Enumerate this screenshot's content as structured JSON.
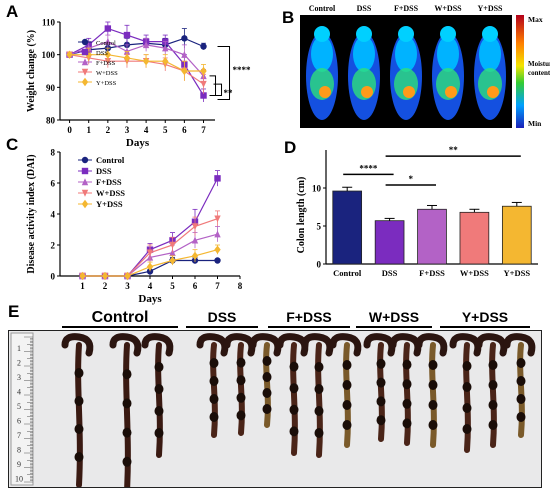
{
  "panels": {
    "a": "A",
    "b": "B",
    "c": "C",
    "d": "D",
    "e": "E"
  },
  "colors": {
    "control": "#1a237e",
    "dss": "#7b2cbf",
    "f_dss": "#b362c6",
    "w_dss": "#f07a7a",
    "y_dss": "#f4b731"
  },
  "chart_data": [
    {
      "id": "weight",
      "type": "line",
      "ylabel": "Weight change (%)",
      "xlabel": "Days",
      "x": [
        0,
        1,
        2,
        3,
        4,
        5,
        6,
        7
      ],
      "xlim": [
        -0.5,
        7.6
      ],
      "ylim": [
        80,
        110
      ],
      "yticks": [
        80,
        90,
        100,
        110
      ],
      "series": [
        {
          "name": "Control",
          "color": "#1a237e",
          "marker": "circle",
          "values": [
            100,
            101.5,
            102,
            103,
            103.5,
            103,
            105,
            102.5
          ],
          "err": [
            0,
            1.5,
            1.5,
            2,
            1.5,
            2,
            3,
            1
          ]
        },
        {
          "name": "DSS",
          "color": "#7b2cbf",
          "marker": "square",
          "values": [
            100,
            103,
            108,
            106,
            104,
            104,
            97,
            87.5
          ],
          "err": [
            0,
            2,
            2,
            3,
            2,
            2,
            3,
            2
          ]
        },
        {
          "name": "F+DSS",
          "color": "#b362c6",
          "marker": "triangle",
          "values": [
            100,
            102,
            104,
            101,
            103,
            102,
            100,
            93.5
          ],
          "err": [
            0,
            2,
            2,
            2,
            2,
            2,
            3,
            2
          ]
        },
        {
          "name": "W+DSS",
          "color": "#f07a7a",
          "marker": "tri-down",
          "values": [
            100,
            99,
            98,
            98,
            98,
            97,
            95,
            91
          ],
          "err": [
            0,
            2,
            2,
            2,
            2,
            2,
            3,
            3
          ]
        },
        {
          "name": "Y+DSS",
          "color": "#f4b731",
          "marker": "diamond",
          "values": [
            100,
            100,
            100,
            99,
            98,
            98,
            95,
            95
          ],
          "err": [
            0,
            2,
            2,
            2,
            2,
            2,
            3,
            2
          ]
        }
      ],
      "significance": [
        "**",
        "****"
      ]
    },
    {
      "id": "dai",
      "type": "line",
      "ylabel": "Disease activity index (DAI)",
      "xlabel": "Days",
      "x": [
        1,
        2,
        3,
        4,
        5,
        6,
        7
      ],
      "xlim": [
        0,
        8
      ],
      "ylim": [
        0,
        8
      ],
      "xticks": [
        1,
        2,
        3,
        4,
        5,
        6,
        7,
        8
      ],
      "yticks": [
        0,
        2,
        4,
        6,
        8
      ],
      "series": [
        {
          "name": "Control",
          "color": "#1a237e",
          "marker": "circle",
          "values": [
            0,
            0,
            0,
            0.3,
            1,
            1,
            1
          ],
          "err": [
            0,
            0,
            0,
            0.3,
            0.2,
            0.2,
            0
          ]
        },
        {
          "name": "DSS",
          "color": "#7b2cbf",
          "marker": "square",
          "values": [
            0,
            0,
            0,
            1.7,
            2.3,
            3.5,
            6.3
          ],
          "err": [
            0,
            0,
            0,
            0.4,
            0.5,
            0.8,
            0.5
          ]
        },
        {
          "name": "F+DSS",
          "color": "#b362c6",
          "marker": "triangle",
          "values": [
            0,
            0,
            0,
            1.2,
            1.5,
            2.3,
            2.7
          ],
          "err": [
            0,
            0,
            0,
            0.4,
            0.5,
            0.5,
            0.5
          ]
        },
        {
          "name": "W+DSS",
          "color": "#f07a7a",
          "marker": "tri-down",
          "values": [
            0,
            0,
            0,
            1.5,
            2,
            3.2,
            3.7
          ],
          "err": [
            0,
            0,
            0,
            0.5,
            0.5,
            0.6,
            0.5
          ]
        },
        {
          "name": "Y+DSS",
          "color": "#f4b731",
          "marker": "diamond",
          "values": [
            0,
            0,
            0,
            0.6,
            1,
            1.3,
            1.7
          ],
          "err": [
            0,
            0,
            0,
            0.3,
            0.3,
            0.4,
            0.3
          ]
        }
      ]
    },
    {
      "id": "colon",
      "type": "bar",
      "ylabel": "Colon length (cm)",
      "categories": [
        "Control",
        "DSS",
        "F+DSS",
        "W+DSS",
        "Y+DSS"
      ],
      "values": [
        9.6,
        5.7,
        7.2,
        6.8,
        7.6
      ],
      "err": [
        0.5,
        0.3,
        0.5,
        0.4,
        0.5
      ],
      "colors": [
        "#1a237e",
        "#7b2cbf",
        "#b362c6",
        "#f07a7a",
        "#f4b731"
      ],
      "ylim": [
        0,
        15
      ],
      "yticks": [
        0,
        5,
        10
      ],
      "significance": [
        {
          "label": "****",
          "from": "Control",
          "to": "DSS"
        },
        {
          "label": "*",
          "from": "DSS",
          "to": "F+DSS"
        },
        {
          "label": "**",
          "from": "DSS",
          "to": "Y+DSS"
        }
      ]
    }
  ],
  "imaging": {
    "groups": [
      "Control",
      "DSS",
      "F+DSS",
      "W+DSS",
      "Y+DSS"
    ],
    "scale_max": "Max",
    "scale_mid": "Moisture content",
    "scale_min": "Min"
  },
  "colons": {
    "groups": [
      "Control",
      "DSS",
      "F+DSS",
      "W+DSS",
      "Y+DSS"
    ],
    "ruler_digits": [
      "1",
      "2",
      "3",
      "4",
      "5",
      "6",
      "7",
      "8",
      "9",
      "10"
    ]
  }
}
